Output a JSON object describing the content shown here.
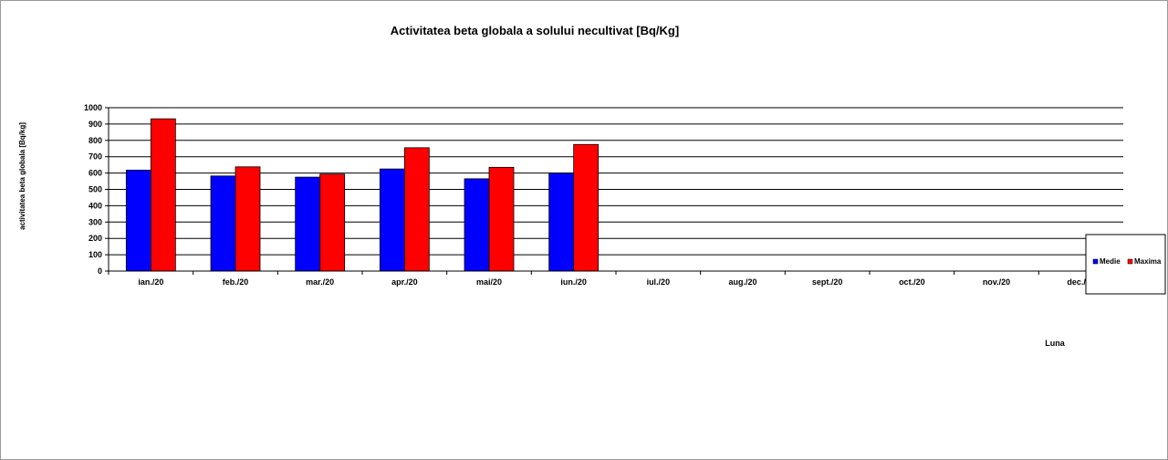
{
  "chart_data": {
    "type": "bar",
    "title": "Activitatea beta globala a solului necultivat [Bq/Kg]",
    "ylabel": "activitatea beta globala [Bq/kg]",
    "xlabel": "Luna",
    "categories": [
      "ian./20",
      "feb./20",
      "mar./20",
      "apr./20",
      "mai/20",
      "iun./20",
      "iul./20",
      "aug./20",
      "sept./20",
      "oct./20",
      "nov./20",
      "dec./20"
    ],
    "ylim": [
      0,
      1000
    ],
    "yticks": [
      0,
      100,
      200,
      300,
      400,
      500,
      600,
      700,
      800,
      900,
      1000
    ],
    "grid": true,
    "legend_position": "right",
    "series": [
      {
        "name": "Medie",
        "color": "#0000ff",
        "values": [
          618,
          582,
          575,
          625,
          565,
          600,
          null,
          null,
          null,
          null,
          null,
          null
        ]
      },
      {
        "name": "Maxima",
        "color": "#ff0000",
        "values": [
          932,
          638,
          593,
          755,
          635,
          775,
          null,
          null,
          null,
          null,
          null,
          null
        ]
      }
    ]
  }
}
